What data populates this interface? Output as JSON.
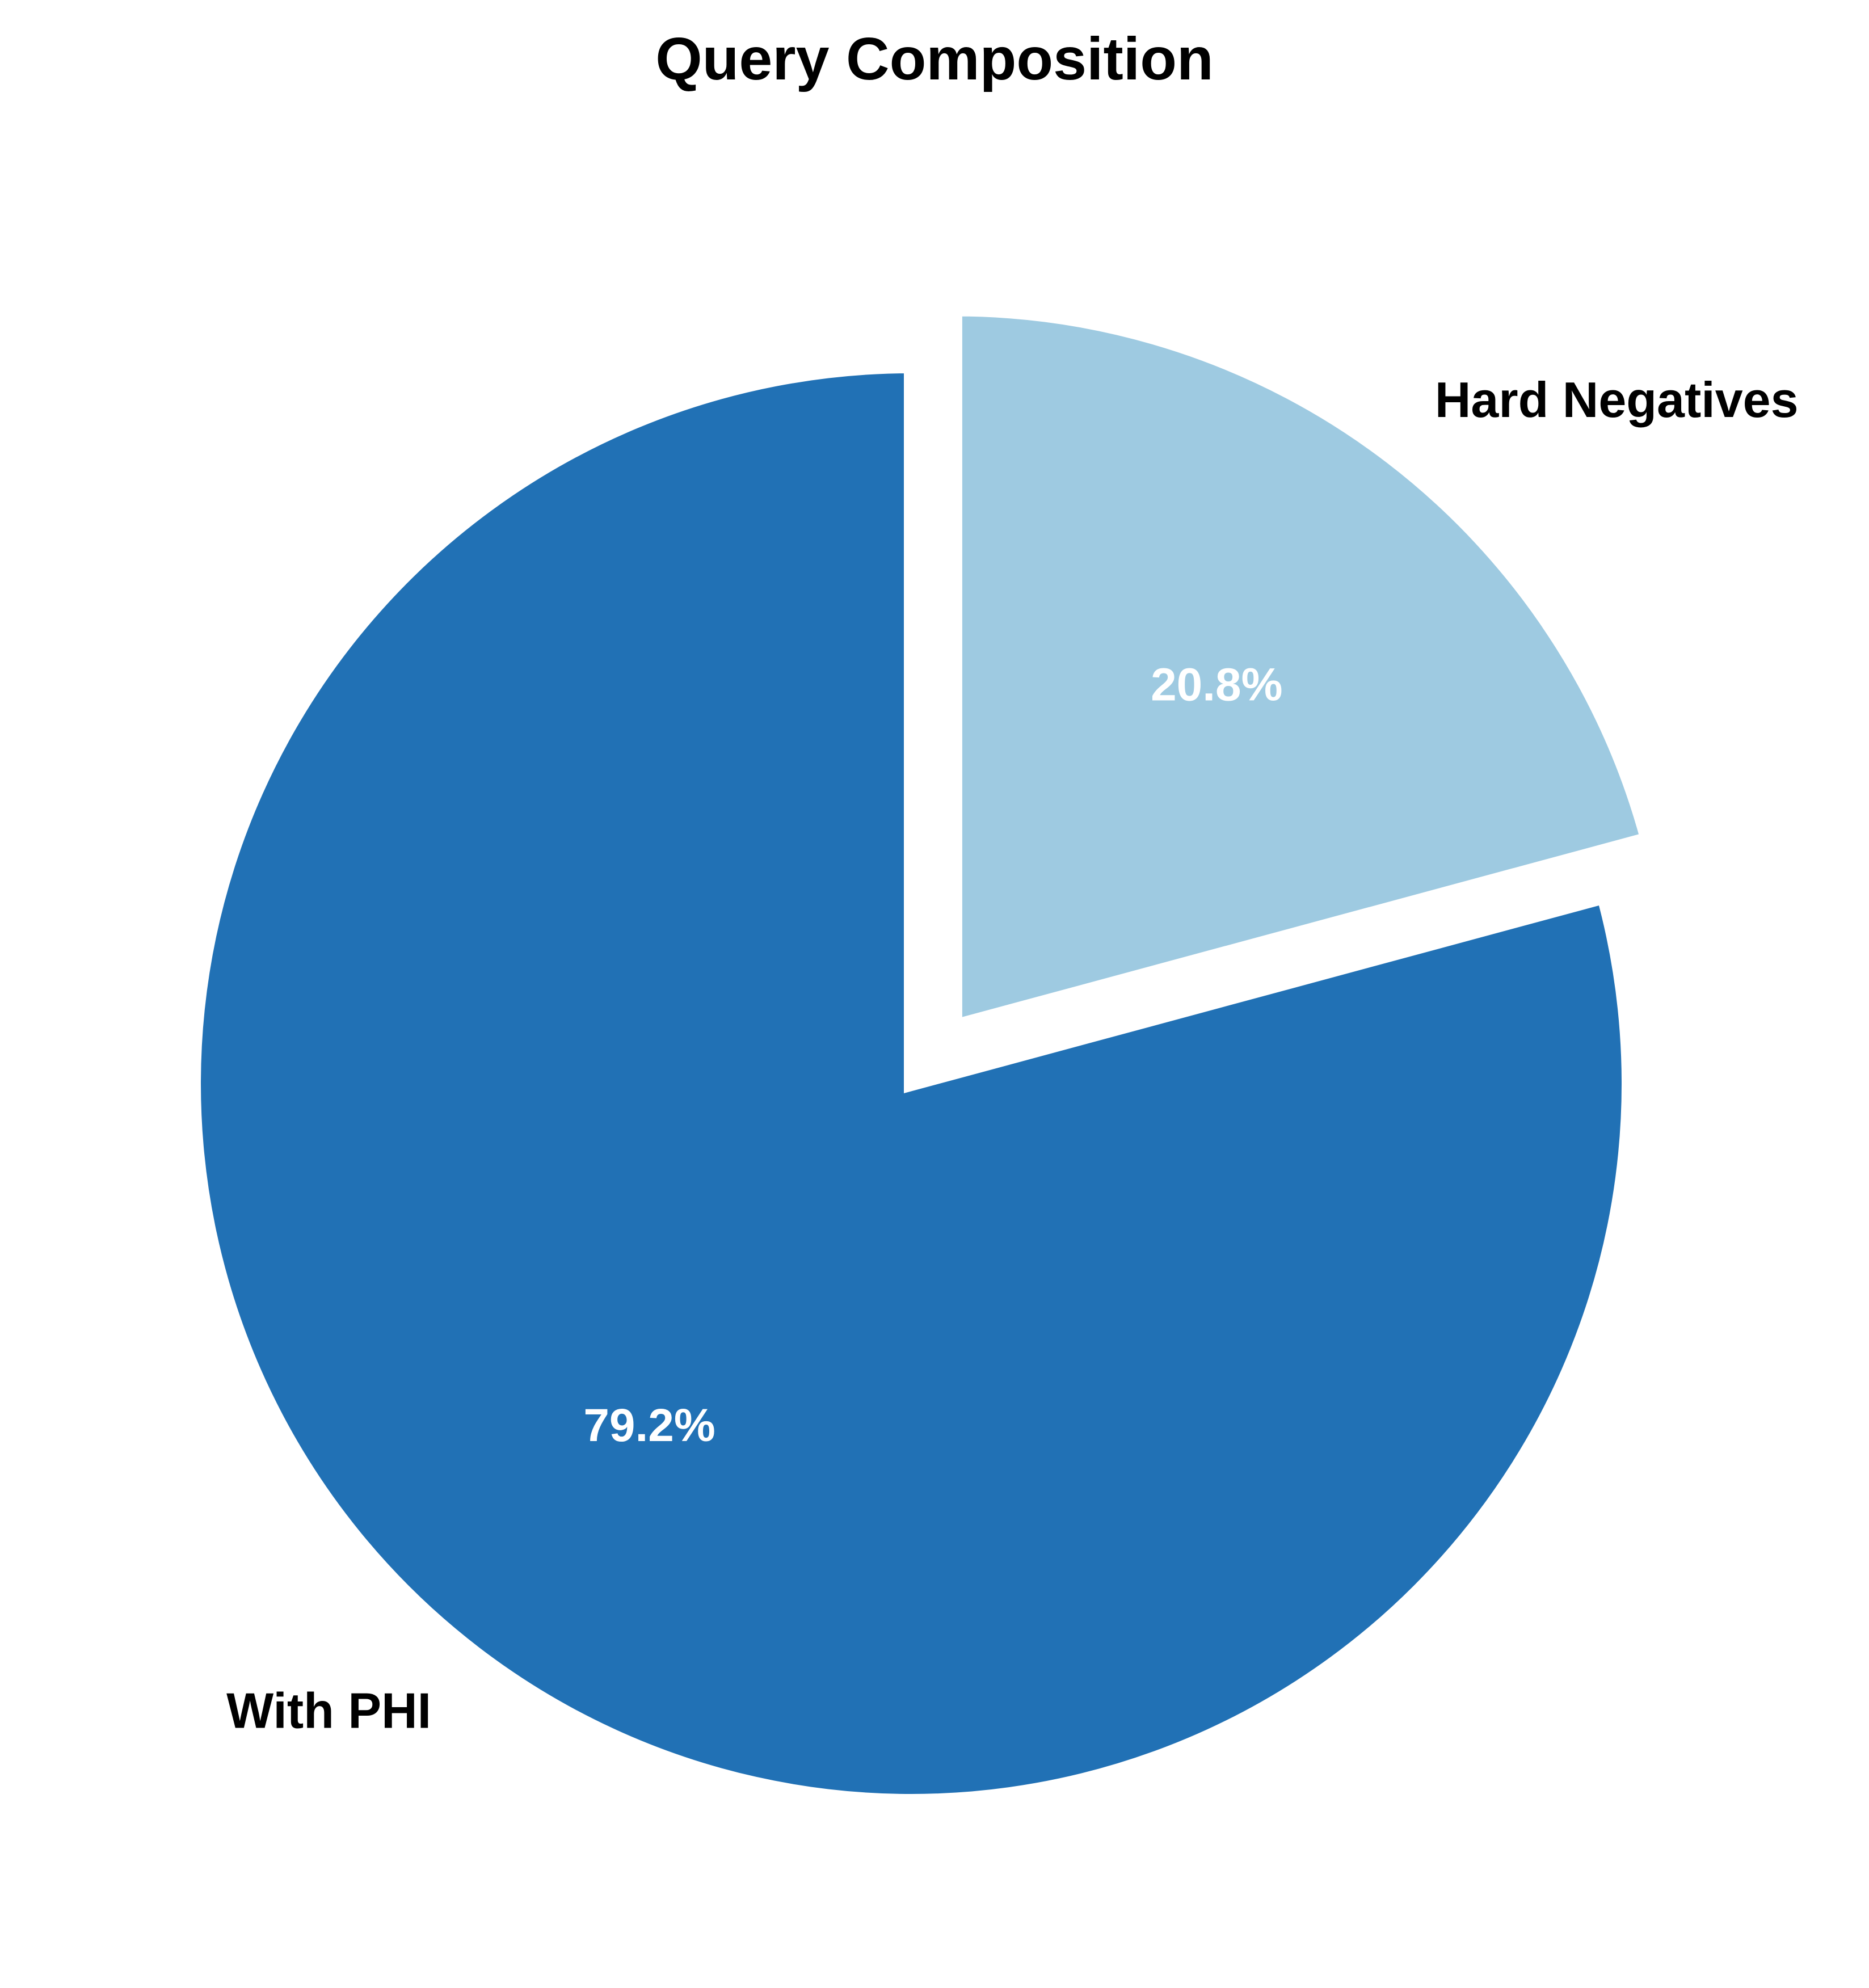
{
  "chart_data": {
    "type": "pie",
    "title": "Query Composition",
    "slices": [
      {
        "label": "Hard Negatives",
        "value": 20.8,
        "percent_label": "20.8%",
        "color": "#9ecae1",
        "exploded": true
      },
      {
        "label": "With PHI",
        "value": 79.2,
        "percent_label": "79.2%",
        "color": "#2171b5",
        "exploded": false
      }
    ],
    "start_angle_deg": 90,
    "direction": "clockwise",
    "wedge_edge_color": "#ffffff"
  }
}
